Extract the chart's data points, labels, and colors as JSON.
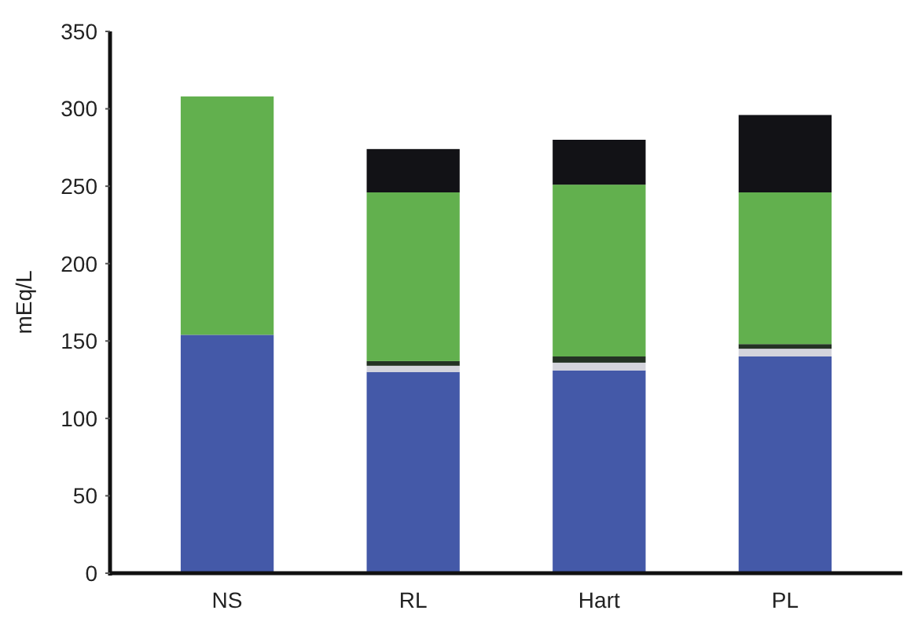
{
  "chart_data": {
    "type": "bar",
    "stacked": true,
    "ylabel": "mEq/L",
    "categories": [
      "NS",
      "RL",
      "Hart",
      "PL"
    ],
    "series": [
      {
        "color": "#4459a8",
        "values": [
          154,
          130,
          131,
          140
        ]
      },
      {
        "color": "#d4d4dc",
        "values": [
          0,
          4,
          5,
          5
        ]
      },
      {
        "color": "#243224",
        "values": [
          0,
          3,
          4,
          3
        ]
      },
      {
        "color": "#62b04e",
        "values": [
          154,
          109,
          111,
          98
        ]
      },
      {
        "color": "#121216",
        "values": [
          0,
          28,
          29,
          50
        ]
      }
    ],
    "ylim": [
      0,
      350
    ],
    "yticks": [
      0,
      50,
      100,
      150,
      200,
      250,
      300,
      350
    ],
    "grid": false
  }
}
